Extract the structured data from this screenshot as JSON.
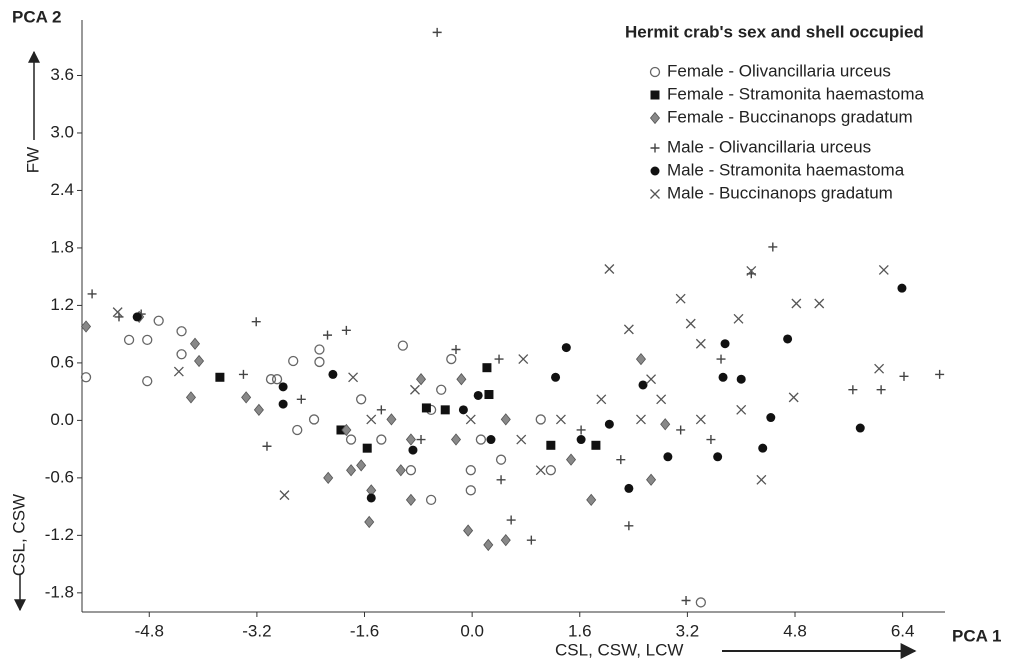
{
  "chart_data": {
    "type": "scatter",
    "title": "Hermit crab's sex and shell occupied",
    "x_label": "PCA 1",
    "y_label": "PCA 2",
    "x_annotation": "CSL, CSW, LCW",
    "y_annotation_top": "FW",
    "y_annotation_bottom": "CSL, CSW",
    "xlim": [
      -5.8,
      7.0
    ],
    "ylim": [
      -2.0,
      4.2
    ],
    "xticks": [
      -4.8,
      -3.2,
      -1.6,
      {
        "value": 0,
        "label": "0.0"
      },
      1.6,
      3.2,
      4.8,
      6.4
    ],
    "yticks": [
      -1.8,
      -1.2,
      -0.6,
      {
        "value": 0,
        "label": "0.0"
      },
      0.6,
      1.2,
      1.8,
      2.4,
      {
        "value": 3,
        "label": "3.0"
      },
      3.6
    ],
    "series": [
      {
        "name": "Female - Olivancillaria urceus",
        "marker": "open-circle",
        "color": "#666666",
        "x": [
          -5.74,
          -5.1,
          -4.83,
          -4.83,
          -4.66,
          -4.32,
          -4.32,
          -2.99,
          -2.9,
          -2.66,
          -2.27,
          -2.27,
          -1.03,
          -1.65,
          -0.61,
          -0.31,
          0.13,
          -0.02,
          0.43,
          -0.02,
          -0.91,
          -1.35,
          1.02,
          1.17,
          3.4,
          -2.6,
          -2.35,
          -0.61,
          -0.46,
          -1.8
        ],
        "values": [
          0.45,
          0.84,
          0.84,
          0.41,
          1.04,
          0.93,
          0.69,
          0.43,
          0.43,
          0.62,
          0.74,
          0.61,
          0.78,
          0.22,
          0.11,
          0.64,
          -0.2,
          -0.52,
          -0.41,
          -0.73,
          -0.52,
          -0.2,
          0.01,
          -0.52,
          -1.9,
          -0.1,
          0.01,
          -0.83,
          0.32,
          -0.2
        ]
      },
      {
        "name": "Female - Stramonita haemastoma",
        "marker": "square",
        "color": "#111111",
        "x": [
          -3.75,
          0.22,
          0.25,
          -1.56,
          -0.68,
          -0.4,
          1.17,
          1.84,
          -1.95
        ],
        "values": [
          0.45,
          0.55,
          0.27,
          -0.29,
          0.13,
          0.11,
          -0.26,
          -0.26,
          -0.1
        ]
      },
      {
        "name": "Female - Buccinanops gradatum",
        "marker": "diamond",
        "color": "#888888",
        "x": [
          -5.74,
          -4.95,
          -4.12,
          -4.06,
          -4.18,
          -3.36,
          -3.17,
          -2.14,
          -1.87,
          -1.65,
          -1.5,
          -1.53,
          -1.06,
          -0.91,
          -0.76,
          -0.16,
          -0.06,
          0.24,
          0.5,
          -1.2,
          -0.24,
          0.5,
          1.77,
          2.66,
          2.87,
          2.51,
          -0.91,
          -1.8,
          1.47
        ],
        "values": [
          0.98,
          1.08,
          0.8,
          0.62,
          0.24,
          0.24,
          0.11,
          -0.6,
          -0.1,
          -0.47,
          -0.73,
          -1.06,
          -0.52,
          -0.83,
          0.43,
          0.43,
          -1.15,
          -1.3,
          -1.25,
          0.01,
          -0.2,
          0.01,
          -0.83,
          -0.62,
          -0.04,
          0.64,
          -0.2,
          -0.52,
          -0.41
        ]
      },
      {
        "name": "Male - Olivancillaria urceus",
        "marker": "plus",
        "color": "#444444",
        "x": [
          -5.65,
          -5.25,
          -4.92,
          -3.21,
          -0.52,
          -1.87,
          -3.4,
          -3.05,
          -2.15,
          -0.24,
          0.4,
          0.58,
          0.88,
          2.33,
          3.18,
          4.47,
          4.15,
          6.08,
          6.42,
          6.95,
          5.66,
          3.55,
          3.1,
          1.62,
          -0.76,
          -1.35,
          0.43,
          2.21,
          -2.54,
          3.7
        ],
        "values": [
          1.32,
          1.08,
          1.11,
          1.03,
          4.05,
          0.94,
          0.48,
          -0.27,
          0.89,
          0.74,
          0.64,
          -1.04,
          -1.25,
          -1.1,
          -1.88,
          1.81,
          1.53,
          0.32,
          0.46,
          0.48,
          0.32,
          -0.2,
          -0.1,
          -0.1,
          -0.2,
          0.11,
          -0.62,
          -0.41,
          0.22,
          0.64
        ]
      },
      {
        "name": "Male - Stramonita haemastoma",
        "marker": "dot",
        "color": "#111111",
        "x": [
          -4.98,
          -2.81,
          -2.81,
          -2.07,
          -1.5,
          -0.88,
          -0.13,
          0.09,
          0.28,
          1.4,
          1.24,
          1.62,
          2.04,
          2.33,
          2.54,
          2.91,
          3.65,
          3.73,
          3.76,
          4.0,
          4.32,
          4.44,
          4.69,
          5.77,
          6.39
        ],
        "values": [
          1.08,
          0.35,
          0.17,
          0.48,
          -0.81,
          -0.31,
          0.11,
          0.26,
          -0.2,
          0.76,
          0.45,
          -0.2,
          -0.04,
          -0.71,
          0.37,
          -0.38,
          -0.38,
          0.45,
          0.8,
          0.43,
          -0.29,
          0.03,
          0.85,
          -0.08,
          1.38
        ]
      },
      {
        "name": "Male - Buccinanops gradatum",
        "marker": "cross",
        "color": "#555555",
        "x": [
          -5.27,
          -4.36,
          -2.79,
          -1.77,
          -0.85,
          0.76,
          1.02,
          2.04,
          2.33,
          3.1,
          3.25,
          3.4,
          4.15,
          3.96,
          4.82,
          5.16,
          4.78,
          6.12,
          6.05,
          2.51,
          1.92,
          1.32,
          0.73,
          -0.02,
          2.66,
          2.81,
          3.4,
          4.0,
          4.3,
          -1.5
        ],
        "values": [
          1.13,
          0.51,
          -0.78,
          0.45,
          0.32,
          0.64,
          -0.52,
          1.58,
          0.95,
          1.27,
          1.01,
          0.8,
          1.56,
          1.06,
          1.22,
          1.22,
          0.24,
          1.57,
          0.54,
          0.01,
          0.22,
          0.01,
          -0.2,
          0.01,
          0.43,
          0.22,
          0.01,
          0.11,
          -0.62,
          0.01
        ]
      }
    ]
  }
}
